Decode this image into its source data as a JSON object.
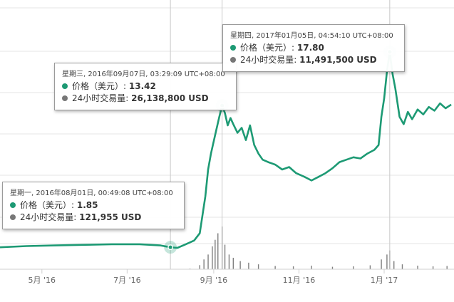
{
  "colors": {
    "line": "#1d9a74",
    "volume": "#7f7f7f",
    "grid": "#e6e6e6",
    "dot_price": "#1d9a74",
    "dot_volume": "#777777"
  },
  "chart_data": {
    "type": "line",
    "title": "",
    "xlabel": "",
    "ylabel": "",
    "x_ticks": [
      "5月 '16",
      "7月 '16",
      "9月 '16",
      "11月 '16",
      "1月 '17"
    ],
    "x_range": [
      "2016-04-01",
      "2017-02-20"
    ],
    "grid": true,
    "series": [
      {
        "type": "line",
        "points": [
          [
            "2016-04-01",
            1.85
          ],
          [
            "2016-04-20",
            1.95
          ],
          [
            "2016-05-10",
            2.0
          ],
          [
            "2016-06-01",
            2.05
          ],
          [
            "2016-06-20",
            2.1
          ],
          [
            "2016-07-10",
            2.1
          ],
          [
            "2016-07-25",
            2.0
          ],
          [
            "2016-08-01",
            1.85
          ],
          [
            "2016-08-06",
            1.8
          ],
          [
            "2016-08-12",
            2.1
          ],
          [
            "2016-08-18",
            2.4
          ],
          [
            "2016-08-22",
            3.0
          ],
          [
            "2016-08-24",
            4.5
          ],
          [
            "2016-08-26",
            6.0
          ],
          [
            "2016-08-28",
            8.2
          ],
          [
            "2016-08-30",
            9.5
          ],
          [
            "2016-09-02",
            11.0
          ],
          [
            "2016-09-05",
            12.5
          ],
          [
            "2016-09-07",
            13.42
          ],
          [
            "2016-09-09",
            12.8
          ],
          [
            "2016-09-11",
            11.8
          ],
          [
            "2016-09-13",
            12.4
          ],
          [
            "2016-09-15",
            11.9
          ],
          [
            "2016-09-18",
            11.2
          ],
          [
            "2016-09-21",
            11.6
          ],
          [
            "2016-09-24",
            10.6
          ],
          [
            "2016-09-27",
            11.8
          ],
          [
            "2016-09-30",
            10.2
          ],
          [
            "2016-10-03",
            9.5
          ],
          [
            "2016-10-06",
            9.0
          ],
          [
            "2016-10-10",
            8.8
          ],
          [
            "2016-10-15",
            8.6
          ],
          [
            "2016-10-20",
            8.2
          ],
          [
            "2016-10-25",
            8.4
          ],
          [
            "2016-10-30",
            7.9
          ],
          [
            "2016-11-05",
            7.6
          ],
          [
            "2016-11-10",
            7.3
          ],
          [
            "2016-11-15",
            7.6
          ],
          [
            "2016-11-20",
            7.9
          ],
          [
            "2016-11-25",
            8.3
          ],
          [
            "2016-11-30",
            8.8
          ],
          [
            "2016-12-05",
            9.0
          ],
          [
            "2016-12-10",
            9.2
          ],
          [
            "2016-12-15",
            9.1
          ],
          [
            "2016-12-20",
            9.5
          ],
          [
            "2016-12-25",
            9.8
          ],
          [
            "2016-12-28",
            10.2
          ],
          [
            "2016-12-30",
            12.5
          ],
          [
            "2017-01-01",
            14.0
          ],
          [
            "2017-01-03",
            16.2
          ],
          [
            "2017-01-05",
            17.8
          ],
          [
            "2017-01-07",
            16.0
          ],
          [
            "2017-01-09",
            14.8
          ],
          [
            "2017-01-12",
            12.5
          ],
          [
            "2017-01-15",
            11.9
          ],
          [
            "2017-01-18",
            12.9
          ],
          [
            "2017-01-21",
            12.3
          ],
          [
            "2017-01-25",
            13.1
          ],
          [
            "2017-01-29",
            12.7
          ],
          [
            "2017-02-02",
            13.3
          ],
          [
            "2017-02-06",
            13.0
          ],
          [
            "2017-02-10",
            13.6
          ],
          [
            "2017-02-14",
            13.2
          ],
          [
            "2017-02-18",
            13.5
          ]
        ]
      },
      {
        "type": "bar",
        "points": [
          [
            "2016-04-10",
            40000
          ],
          [
            "2016-05-05",
            35000
          ],
          [
            "2016-06-01",
            50000
          ],
          [
            "2016-06-28",
            60000
          ],
          [
            "2016-07-20",
            45000
          ],
          [
            "2016-08-01",
            121955
          ],
          [
            "2016-08-15",
            400000
          ],
          [
            "2016-08-22",
            2500000
          ],
          [
            "2016-08-25",
            6000000
          ],
          [
            "2016-08-28",
            9000000
          ],
          [
            "2016-08-31",
            14000000
          ],
          [
            "2016-09-02",
            18000000
          ],
          [
            "2016-09-04",
            22000000
          ],
          [
            "2016-09-07",
            26138800
          ],
          [
            "2016-09-09",
            15000000
          ],
          [
            "2016-09-12",
            9000000
          ],
          [
            "2016-09-15",
            7000000
          ],
          [
            "2016-09-20",
            5000000
          ],
          [
            "2016-09-26",
            4000000
          ],
          [
            "2016-10-03",
            3000000
          ],
          [
            "2016-10-15",
            2000000
          ],
          [
            "2016-10-28",
            1800000
          ],
          [
            "2016-11-10",
            2200000
          ],
          [
            "2016-11-25",
            1500000
          ],
          [
            "2016-12-10",
            1800000
          ],
          [
            "2016-12-22",
            2400000
          ],
          [
            "2016-12-30",
            6000000
          ],
          [
            "2017-01-03",
            9000000
          ],
          [
            "2017-01-05",
            11491500
          ],
          [
            "2017-01-08",
            5000000
          ],
          [
            "2017-01-14",
            3000000
          ],
          [
            "2017-01-25",
            2200000
          ],
          [
            "2017-02-05",
            1800000
          ],
          [
            "2017-02-15",
            2000000
          ]
        ]
      }
    ],
    "annotations": [
      {
        "date": "2016-08-01",
        "price": 1.85,
        "volume": 121955
      },
      {
        "date": "2016-09-07",
        "price": 13.42,
        "volume": 26138800
      },
      {
        "date": "2017-01-05",
        "price": 17.8,
        "volume": 11491500
      }
    ]
  },
  "tooltips": [
    {
      "date_text": "星期一, 2016年08月01日, 00:49:08 UTC+08:00",
      "price_label": "价格（美元）:",
      "price_value": "1.85",
      "volume_label": "24小时交易量:",
      "volume_value": "121,955 USD"
    },
    {
      "date_text": "星期三, 2016年09月07日, 03:29:09 UTC+08:00",
      "price_label": "价格（美元）:",
      "price_value": "13.42",
      "volume_label": "24小时交易量:",
      "volume_value": "26,138,800 USD"
    },
    {
      "date_text": "星期四, 2017年01月05日, 04:54:10 UTC+08:00",
      "price_label": "价格（美元）:",
      "price_value": "17.80",
      "volume_label": "24小时交易量:",
      "volume_value": "11,491,500 USD"
    }
  ]
}
